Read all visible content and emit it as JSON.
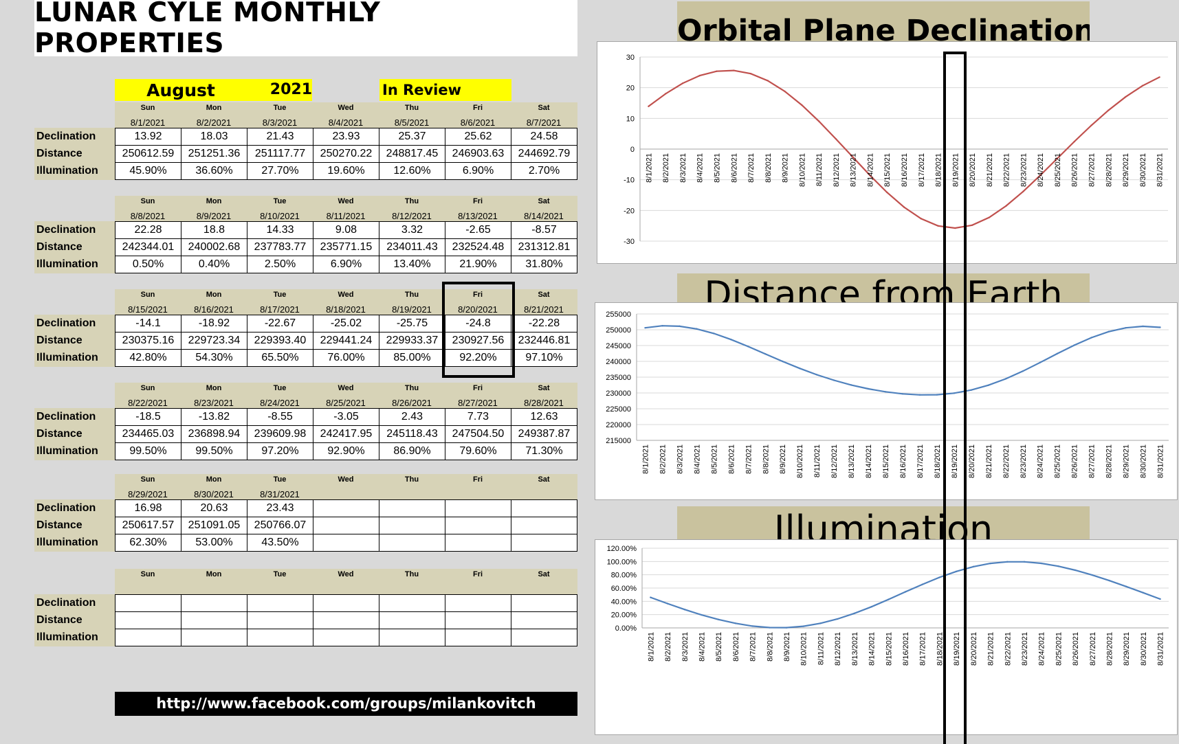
{
  "header": {
    "title": "LUNAR CYLE MONTHLY PROPERTIES",
    "month": "August",
    "year": "2021",
    "status": "In Review"
  },
  "row_labels": [
    "Declination",
    "Distance",
    "Illumination"
  ],
  "weeks": [
    {
      "days": [
        {
          "name": "Sun",
          "date": "8/1/2021",
          "declination": "13.92",
          "distance": "250612.59",
          "illumination": "45.90%"
        },
        {
          "name": "Mon",
          "date": "8/2/2021",
          "declination": "18.03",
          "distance": "251251.36",
          "illumination": "36.60%"
        },
        {
          "name": "Tue",
          "date": "8/3/2021",
          "declination": "21.43",
          "distance": "251117.77",
          "illumination": "27.70%"
        },
        {
          "name": "Wed",
          "date": "8/4/2021",
          "declination": "23.93",
          "distance": "250270.22",
          "illumination": "19.60%"
        },
        {
          "name": "Thu",
          "date": "8/5/2021",
          "declination": "25.37",
          "distance": "248817.45",
          "illumination": "12.60%"
        },
        {
          "name": "Fri",
          "date": "8/6/2021",
          "declination": "25.62",
          "distance": "246903.63",
          "illumination": "6.90%"
        },
        {
          "name": "Sat",
          "date": "8/7/2021",
          "declination": "24.58",
          "distance": "244692.79",
          "illumination": "2.70%"
        }
      ]
    },
    {
      "days": [
        {
          "name": "Sun",
          "date": "8/8/2021",
          "declination": "22.28",
          "distance": "242344.01",
          "illumination": "0.50%"
        },
        {
          "name": "Mon",
          "date": "8/9/2021",
          "declination": "18.8",
          "distance": "240002.68",
          "illumination": "0.40%"
        },
        {
          "name": "Tue",
          "date": "8/10/2021",
          "declination": "14.33",
          "distance": "237783.77",
          "illumination": "2.50%"
        },
        {
          "name": "Wed",
          "date": "8/11/2021",
          "declination": "9.08",
          "distance": "235771.15",
          "illumination": "6.90%"
        },
        {
          "name": "Thu",
          "date": "8/12/2021",
          "declination": "3.32",
          "distance": "234011.43",
          "illumination": "13.40%"
        },
        {
          "name": "Fri",
          "date": "8/13/2021",
          "declination": "-2.65",
          "distance": "232524.48",
          "illumination": "21.90%"
        },
        {
          "name": "Sat",
          "date": "8/14/2021",
          "declination": "-8.57",
          "distance": "231312.81",
          "illumination": "31.80%"
        }
      ]
    },
    {
      "days": [
        {
          "name": "Sun",
          "date": "8/15/2021",
          "declination": "-14.1",
          "distance": "230375.16",
          "illumination": "42.80%"
        },
        {
          "name": "Mon",
          "date": "8/16/2021",
          "declination": "-18.92",
          "distance": "229723.34",
          "illumination": "54.30%"
        },
        {
          "name": "Tue",
          "date": "8/17/2021",
          "declination": "-22.67",
          "distance": "229393.40",
          "illumination": "65.50%"
        },
        {
          "name": "Wed",
          "date": "8/18/2021",
          "declination": "-25.02",
          "distance": "229441.24",
          "illumination": "76.00%"
        },
        {
          "name": "Thu",
          "date": "8/19/2021",
          "declination": "-25.75",
          "distance": "229933.37",
          "illumination": "85.00%"
        },
        {
          "name": "Fri",
          "date": "8/20/2021",
          "declination": "-24.8",
          "distance": "230927.56",
          "illumination": "92.20%"
        },
        {
          "name": "Sat",
          "date": "8/21/2021",
          "declination": "-22.28",
          "distance": "232446.81",
          "illumination": "97.10%"
        }
      ]
    },
    {
      "days": [
        {
          "name": "Sun",
          "date": "8/22/2021",
          "declination": "-18.5",
          "distance": "234465.03",
          "illumination": "99.50%"
        },
        {
          "name": "Mon",
          "date": "8/23/2021",
          "declination": "-13.82",
          "distance": "236898.94",
          "illumination": "99.50%"
        },
        {
          "name": "Tue",
          "date": "8/24/2021",
          "declination": "-8.55",
          "distance": "239609.98",
          "illumination": "97.20%"
        },
        {
          "name": "Wed",
          "date": "8/25/2021",
          "declination": "-3.05",
          "distance": "242417.95",
          "illumination": "92.90%"
        },
        {
          "name": "Thu",
          "date": "8/26/2021",
          "declination": "2.43",
          "distance": "245118.43",
          "illumination": "86.90%"
        },
        {
          "name": "Fri",
          "date": "8/27/2021",
          "declination": "7.73",
          "distance": "247504.50",
          "illumination": "79.60%"
        },
        {
          "name": "Sat",
          "date": "8/28/2021",
          "declination": "12.63",
          "distance": "249387.87",
          "illumination": "71.30%"
        }
      ]
    },
    {
      "days": [
        {
          "name": "Sun",
          "date": "8/29/2021",
          "declination": "16.98",
          "distance": "250617.57",
          "illumination": "62.30%"
        },
        {
          "name": "Mon",
          "date": "8/30/2021",
          "declination": "20.63",
          "distance": "251091.05",
          "illumination": "53.00%"
        },
        {
          "name": "Tue",
          "date": "8/31/2021",
          "declination": "23.43",
          "distance": "250766.07",
          "illumination": "43.50%"
        },
        {
          "name": "Wed",
          "date": "",
          "declination": "",
          "distance": "",
          "illumination": ""
        },
        {
          "name": "Thu",
          "date": "",
          "declination": "",
          "distance": "",
          "illumination": ""
        },
        {
          "name": "Fri",
          "date": "",
          "declination": "",
          "distance": "",
          "illumination": ""
        },
        {
          "name": "Sat",
          "date": "",
          "declination": "",
          "distance": "",
          "illumination": ""
        }
      ]
    },
    {
      "days": [
        {
          "name": "Sun",
          "date": "",
          "declination": "",
          "distance": "",
          "illumination": ""
        },
        {
          "name": "Mon",
          "date": "",
          "declination": "",
          "distance": "",
          "illumination": ""
        },
        {
          "name": "Tue",
          "date": "",
          "declination": "",
          "distance": "",
          "illumination": ""
        },
        {
          "name": "Wed",
          "date": "",
          "declination": "",
          "distance": "",
          "illumination": ""
        },
        {
          "name": "Thu",
          "date": "",
          "declination": "",
          "distance": "",
          "illumination": ""
        },
        {
          "name": "Fri",
          "date": "",
          "declination": "",
          "distance": "",
          "illumination": ""
        },
        {
          "name": "Sat",
          "date": "",
          "declination": "",
          "distance": "",
          "illumination": ""
        }
      ]
    }
  ],
  "footer": {
    "url": "http://www.facebook.com/groups/milankovitch"
  },
  "highlight": {
    "date": "8/20/2021"
  },
  "chart_data": [
    {
      "type": "line",
      "title": "Orbital Plane Declination",
      "x": [
        "8/1/2021",
        "8/2/2021",
        "8/3/2021",
        "8/4/2021",
        "8/5/2021",
        "8/6/2021",
        "8/7/2021",
        "8/8/2021",
        "8/9/2021",
        "8/10/2021",
        "8/11/2021",
        "8/12/2021",
        "8/13/2021",
        "8/14/2021",
        "8/15/2021",
        "8/16/2021",
        "8/17/2021",
        "8/18/2021",
        "8/19/2021",
        "8/20/2021",
        "8/21/2021",
        "8/22/2021",
        "8/23/2021",
        "8/24/2021",
        "8/25/2021",
        "8/26/2021",
        "8/27/2021",
        "8/28/2021",
        "8/29/2021",
        "8/30/2021",
        "8/31/2021"
      ],
      "values": [
        13.92,
        18.03,
        21.43,
        23.93,
        25.37,
        25.62,
        24.58,
        22.28,
        18.8,
        14.33,
        9.08,
        3.32,
        -2.65,
        -8.57,
        -14.1,
        -18.92,
        -22.67,
        -25.02,
        -25.75,
        -24.8,
        -22.28,
        -18.5,
        -13.82,
        -8.55,
        -3.05,
        2.43,
        7.73,
        12.63,
        16.98,
        20.63,
        23.43
      ],
      "ylim": [
        -30,
        30
      ],
      "yticks": [
        "30",
        "20",
        "10",
        "0",
        "-10",
        "-20",
        "-30"
      ],
      "color": "#c0504d",
      "grid": true
    },
    {
      "type": "line",
      "title": "Distance from Earth",
      "x": [
        "8/1/2021",
        "8/2/2021",
        "8/3/2021",
        "8/4/2021",
        "8/5/2021",
        "8/6/2021",
        "8/7/2021",
        "8/8/2021",
        "8/9/2021",
        "8/10/2021",
        "8/11/2021",
        "8/12/2021",
        "8/13/2021",
        "8/14/2021",
        "8/15/2021",
        "8/16/2021",
        "8/17/2021",
        "8/18/2021",
        "8/19/2021",
        "8/20/2021",
        "8/21/2021",
        "8/22/2021",
        "8/23/2021",
        "8/24/2021",
        "8/25/2021",
        "8/26/2021",
        "8/27/2021",
        "8/28/2021",
        "8/29/2021",
        "8/30/2021",
        "8/31/2021"
      ],
      "values": [
        250612.59,
        251251.36,
        251117.77,
        250270.22,
        248817.45,
        246903.63,
        244692.79,
        242344.01,
        240002.68,
        237783.77,
        235771.15,
        234011.43,
        232524.48,
        231312.81,
        230375.16,
        229723.34,
        229393.4,
        229441.24,
        229933.37,
        230927.56,
        232446.81,
        234465.03,
        236898.94,
        239609.98,
        242417.95,
        245118.43,
        247504.5,
        249387.87,
        250617.57,
        251091.05,
        250766.07
      ],
      "ylim": [
        215000,
        255000
      ],
      "yticks": [
        "255000",
        "250000",
        "245000",
        "240000",
        "235000",
        "230000",
        "225000",
        "220000",
        "215000"
      ],
      "color": "#4f81bd",
      "grid": true
    },
    {
      "type": "line",
      "title": "Illumination",
      "x": [
        "8/1/2021",
        "8/2/2021",
        "8/3/2021",
        "8/4/2021",
        "8/5/2021",
        "8/6/2021",
        "8/7/2021",
        "8/8/2021",
        "8/9/2021",
        "8/10/2021",
        "8/11/2021",
        "8/12/2021",
        "8/13/2021",
        "8/14/2021",
        "8/15/2021",
        "8/16/2021",
        "8/17/2021",
        "8/18/2021",
        "8/19/2021",
        "8/20/2021",
        "8/21/2021",
        "8/22/2021",
        "8/23/2021",
        "8/24/2021",
        "8/25/2021",
        "8/26/2021",
        "8/27/2021",
        "8/28/2021",
        "8/29/2021",
        "8/30/2021",
        "8/31/2021"
      ],
      "values": [
        45.9,
        36.6,
        27.7,
        19.6,
        12.6,
        6.9,
        2.7,
        0.5,
        0.4,
        2.5,
        6.9,
        13.4,
        21.9,
        31.8,
        42.8,
        54.3,
        65.5,
        76.0,
        85.0,
        92.2,
        97.1,
        99.5,
        99.5,
        97.2,
        92.9,
        86.9,
        79.6,
        71.3,
        62.3,
        53.0,
        43.5
      ],
      "ylim": [
        0,
        120
      ],
      "yticks": [
        "120.00%",
        "100.00%",
        "80.00%",
        "60.00%",
        "40.00%",
        "20.00%",
        "0.00%"
      ],
      "color": "#4f81bd",
      "grid": true
    }
  ]
}
